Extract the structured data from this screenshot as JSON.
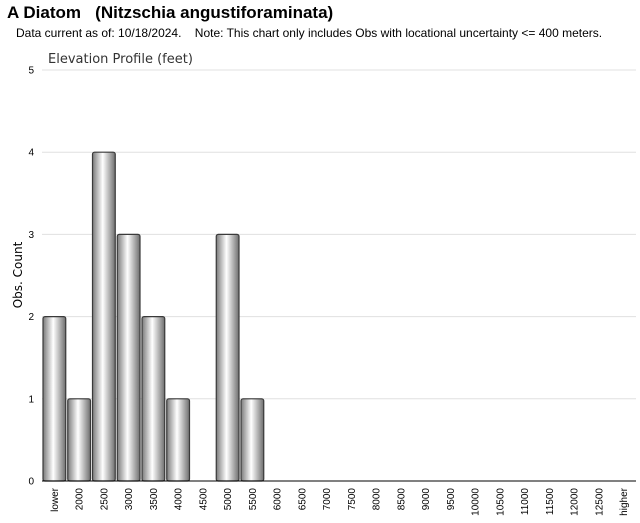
{
  "header": {
    "title": "A Diatom   (Nitzschia angustiforaminata)",
    "subtitle": "Data current as of: 10/18/2024.    Note: This chart only includes Obs with locational uncertainty <= 400 meters."
  },
  "chart_data": {
    "type": "bar",
    "title": "Elevation Profile (feet)",
    "xlabel": "",
    "ylabel": "Obs. Count",
    "categories": [
      "lower",
      "2000",
      "2500",
      "3000",
      "3500",
      "4000",
      "4500",
      "5000",
      "5500",
      "6000",
      "6500",
      "7000",
      "7500",
      "8000",
      "8500",
      "9000",
      "9500",
      "10000",
      "10500",
      "11000",
      "11500",
      "12000",
      "12500",
      "higher"
    ],
    "values": [
      2,
      1,
      4,
      3,
      2,
      1,
      0,
      3,
      1,
      0,
      0,
      0,
      0,
      0,
      0,
      0,
      0,
      0,
      0,
      0,
      0,
      0,
      0,
      0
    ],
    "ylim": [
      0,
      5
    ],
    "yticks": [
      0,
      1,
      2,
      3,
      4,
      5
    ],
    "grid": true,
    "colors": {
      "bar_fill_mid": "#ffffff",
      "bar_fill_edge": "#7a7a7a",
      "bar_stroke": "#3a3a3a",
      "grid": "#e0e0e0"
    }
  }
}
